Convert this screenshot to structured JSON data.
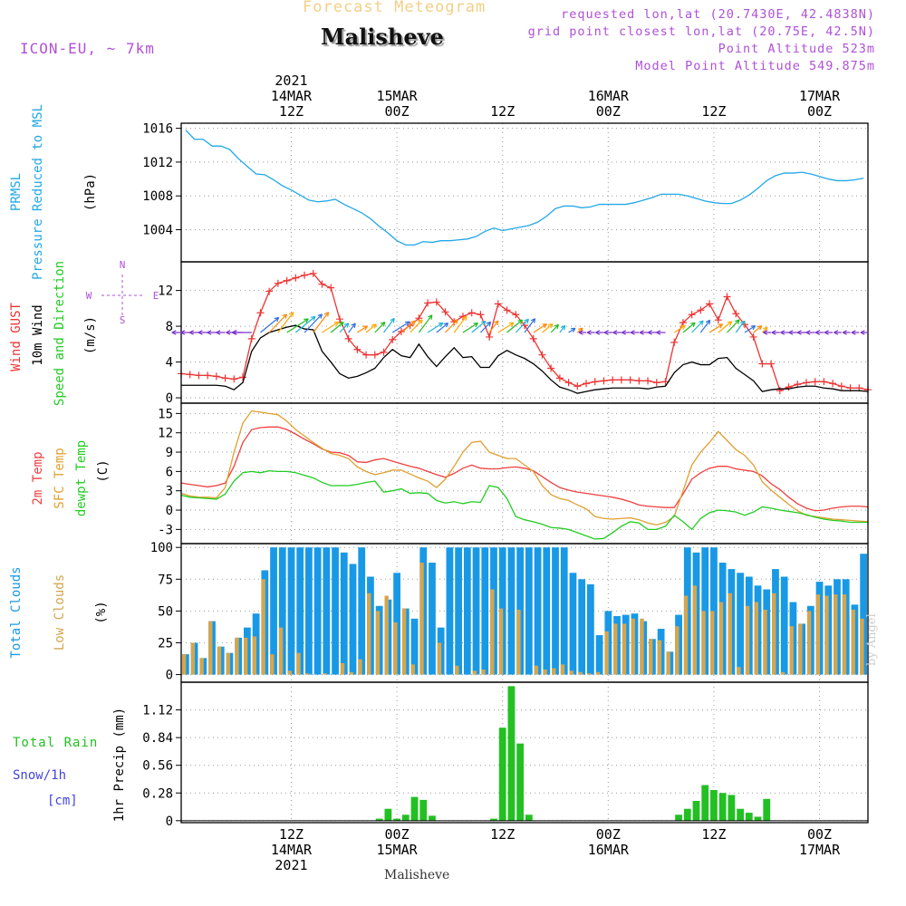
{
  "header": {
    "title": "Forecast Meteogram",
    "location": "Malisheve",
    "model": "ICON-EU, ~ 7km",
    "info": [
      "requested lon,lat (20.7430E, 42.4838N)",
      "grid point closest lon,lat (20.75E, 42.5N)",
      "Point Altitude 523m",
      "Model Point Altitude 549.875m"
    ],
    "footer_location": "Malisheve",
    "watermark": "by Angel"
  },
  "time_axis": {
    "top_labels": [
      {
        "t": 12,
        "lines": [
          "2021",
          "14MAR",
          "12Z"
        ]
      },
      {
        "t": 24,
        "lines": [
          "15MAR",
          "00Z"
        ]
      },
      {
        "t": 36,
        "lines": [
          "12Z"
        ]
      },
      {
        "t": 48,
        "lines": [
          "16MAR",
          "00Z"
        ]
      },
      {
        "t": 60,
        "lines": [
          "12Z"
        ]
      },
      {
        "t": 72,
        "lines": [
          "17MAR",
          "00Z"
        ]
      }
    ],
    "bottom_labels": [
      {
        "t": 12,
        "lines": [
          "12Z",
          "14MAR",
          "2021"
        ]
      },
      {
        "t": 24,
        "lines": [
          "00Z",
          "15MAR"
        ]
      },
      {
        "t": 36,
        "lines": [
          "12Z"
        ]
      },
      {
        "t": 48,
        "lines": [
          "00Z",
          "16MAR"
        ]
      },
      {
        "t": 60,
        "lines": [
          "12Z"
        ]
      },
      {
        "t": 72,
        "lines": [
          "00Z",
          "17MAR"
        ]
      }
    ]
  },
  "colors": {
    "pressure": "#22a7e8",
    "gust": "#ee3333",
    "wind": "#000000",
    "temp2m": "#ee4040",
    "sfc": "#e0a030",
    "dewpt": "#22cc22",
    "total_clouds": "#1899e6",
    "low_clouds": "#d4a64e",
    "rain": "#22c022",
    "snow": "#4444dd",
    "compass": "#b050d8",
    "info": "#b050d8"
  },
  "chart_data": [
    {
      "type": "line",
      "panel": "pressure",
      "ylabels": [
        "PRMSL",
        "Pressure Reduced to MSL",
        "(hPa)"
      ],
      "yticks": [
        1004,
        1008,
        1012,
        1016
      ],
      "ylim": [
        1000.2,
        1016.6
      ],
      "series": [
        {
          "name": "PRMSL",
          "x": [
            0,
            1,
            2,
            3,
            4,
            5,
            6,
            7,
            8,
            9,
            10,
            11,
            12,
            13,
            14,
            15,
            16,
            17,
            18,
            19,
            20,
            21,
            22,
            23,
            24,
            25,
            26,
            27,
            28,
            29,
            30,
            31,
            32,
            33,
            34,
            35,
            36,
            37,
            38,
            39,
            40,
            41,
            42,
            43,
            44,
            45,
            46,
            47,
            48,
            49,
            50,
            51,
            52,
            53,
            54,
            55,
            56,
            57,
            58,
            59,
            60,
            61,
            62,
            63,
            64,
            65,
            66,
            67,
            68,
            69,
            70,
            71,
            72,
            73,
            74,
            75,
            76,
            77
          ],
          "values": [
            1015.8,
            1014.7,
            1014.7,
            1013.9,
            1013.9,
            1013.5,
            1012.4,
            1011.5,
            1010.6,
            1010.5,
            1009.9,
            1009.2,
            1008.7,
            1008.1,
            1007.5,
            1007.3,
            1007.4,
            1007.6,
            1007.0,
            1006.5,
            1006.0,
            1005.3,
            1004.4,
            1003.6,
            1002.7,
            1002.2,
            1002.2,
            1002.6,
            1002.5,
            1002.7,
            1002.7,
            1002.8,
            1002.9,
            1003.2,
            1003.8,
            1004.2,
            1003.9,
            1004.1,
            1004.3,
            1004.5,
            1004.9,
            1005.6,
            1006.5,
            1006.8,
            1006.8,
            1006.6,
            1006.7,
            1007.0,
            1007.0,
            1007.0,
            1007.0,
            1007.2,
            1007.5,
            1007.8,
            1008.2,
            1008.2,
            1008.2,
            1008.0,
            1007.7,
            1007.4,
            1007.2,
            1007.1,
            1007.1,
            1007.5,
            1008.1,
            1008.9,
            1009.8,
            1010.4,
            1010.7,
            1010.7,
            1010.8,
            1010.6,
            1010.3,
            1010.0,
            1009.8,
            1009.8,
            1009.9,
            1010.1
          ]
        }
      ]
    },
    {
      "type": "line",
      "panel": "wind",
      "ylabels": [
        "Wind GUST",
        "10m Wind",
        "Speed and Direction",
        "(m/s)"
      ],
      "compass": [
        "N",
        "W",
        "E",
        "S"
      ],
      "yticks": [
        0,
        4,
        8,
        12
      ],
      "ylim": [
        -0.6,
        15.2
      ],
      "series": [
        {
          "name": "Wind GUST",
          "values": [
            2.7,
            2.6,
            2.5,
            2.5,
            2.4,
            2.2,
            2.1,
            2.3,
            6.6,
            9.5,
            11.9,
            12.8,
            13.1,
            13.4,
            13.7,
            13.9,
            12.7,
            12.3,
            8.8,
            6.6,
            5.4,
            4.8,
            4.8,
            5.1,
            6.5,
            7.4,
            8.1,
            8.9,
            10.6,
            10.7,
            9.6,
            8.5,
            9.1,
            9.5,
            9.3,
            6.8,
            10.5,
            9.8,
            9.3,
            8.1,
            6.6,
            4.8,
            3.3,
            2.2,
            1.7,
            1.3,
            1.6,
            1.8,
            1.9,
            2.0,
            2.0,
            2.0,
            1.9,
            1.9,
            1.7,
            1.8,
            6.2,
            8.4,
            9.3,
            9.8,
            10.5,
            8.7,
            11.3,
            9.4,
            8.2,
            6.8,
            3.8,
            3.8,
            0.8,
            1.2,
            1.5,
            1.7,
            1.8,
            1.8,
            1.6,
            1.3,
            1.1,
            1.1,
            0.9
          ]
        },
        {
          "name": "10m Wind",
          "values": [
            1.4,
            1.4,
            1.4,
            1.4,
            1.4,
            1.3,
            0.9,
            1.7,
            5.2,
            6.7,
            7.3,
            7.6,
            7.9,
            8.1,
            7.7,
            7.6,
            5.2,
            4.0,
            2.7,
            2.2,
            2.4,
            2.8,
            3.3,
            4.5,
            5.4,
            4.7,
            4.5,
            6.0,
            4.6,
            3.5,
            4.6,
            5.6,
            4.5,
            4.6,
            3.4,
            3.4,
            4.7,
            5.3,
            4.8,
            4.4,
            3.8,
            3.0,
            2.0,
            1.2,
            0.9,
            0.5,
            0.7,
            0.9,
            1.0,
            1.1,
            1.1,
            1.1,
            1.1,
            1.0,
            1.2,
            1.3,
            2.8,
            3.7,
            4.0,
            3.7,
            3.7,
            4.4,
            4.5,
            3.3,
            2.6,
            1.9,
            0.7,
            0.9,
            1.0,
            1.0,
            1.2,
            1.3,
            1.3,
            1.1,
            1.0,
            0.8,
            0.8,
            0.8,
            0.7
          ]
        }
      ]
    },
    {
      "type": "line",
      "panel": "temperature",
      "ylabels": [
        "2m Temp",
        "SFC Temp",
        "dewpt Temp",
        "(C)"
      ],
      "yticks": [
        -3,
        0,
        3,
        6,
        9,
        12,
        15
      ],
      "ylim": [
        -5.2,
        16.6
      ],
      "series": [
        {
          "name": "2m Temp",
          "values": [
            4.2,
            4.0,
            3.8,
            3.6,
            3.8,
            4.2,
            6.8,
            10.5,
            12.5,
            12.8,
            12.9,
            12.9,
            12.5,
            11.8,
            11.0,
            10.3,
            9.5,
            9.0,
            8.9,
            8.5,
            7.5,
            7.4,
            7.8,
            8.0,
            7.6,
            7.2,
            6.8,
            6.5,
            6.0,
            5.5,
            5.1,
            5.7,
            6.5,
            7.0,
            6.5,
            6.4,
            6.4,
            6.6,
            6.7,
            6.5,
            6.1,
            5.2,
            4.3,
            3.5,
            3.1,
            2.8,
            2.6,
            2.4,
            2.2,
            2.0,
            1.7,
            1.3,
            0.8,
            0.6,
            0.5,
            0.4,
            0.4,
            2.5,
            4.8,
            5.8,
            6.5,
            6.8,
            6.8,
            6.4,
            6.2,
            6.0,
            5.3,
            4.1,
            3.2,
            2.0,
            1.0,
            0.3,
            -0.1,
            0.0,
            0.3,
            0.5,
            0.6,
            0.6,
            0.5
          ]
        },
        {
          "name": "SFC Temp",
          "values": [
            2.6,
            2.2,
            2.0,
            2.0,
            1.9,
            3.5,
            9.0,
            13.5,
            15.4,
            15.2,
            15.0,
            14.8,
            13.8,
            12.5,
            11.5,
            10.5,
            9.6,
            8.8,
            8.5,
            8.0,
            6.7,
            6.0,
            5.5,
            5.8,
            6.2,
            6.2,
            5.6,
            5.0,
            4.5,
            3.5,
            4.8,
            6.8,
            9.0,
            10.5,
            10.7,
            9.0,
            8.5,
            8.0,
            8.0,
            7.0,
            6.0,
            3.8,
            2.4,
            1.8,
            1.5,
            0.8,
            0.2,
            -1.0,
            -1.3,
            -1.4,
            -1.3,
            -1.2,
            -1.5,
            -2.0,
            -2.3,
            -1.9,
            -1.0,
            3.0,
            7.0,
            9.0,
            10.5,
            12.2,
            10.8,
            9.4,
            8.5,
            7.0,
            4.4,
            3.1,
            2.0,
            0.9,
            -0.1,
            -0.8,
            -1.0,
            -1.2,
            -1.4,
            -1.5,
            -1.6,
            -1.7,
            -1.8
          ]
        },
        {
          "name": "dewpt Temp",
          "values": [
            2.3,
            2.0,
            1.9,
            1.8,
            1.7,
            2.5,
            4.5,
            5.8,
            6.0,
            5.8,
            6.1,
            6.0,
            6.0,
            5.8,
            5.4,
            5.0,
            4.3,
            3.8,
            3.8,
            3.8,
            4.0,
            4.3,
            4.5,
            2.8,
            3.0,
            3.3,
            2.6,
            2.7,
            2.6,
            1.5,
            1.1,
            1.3,
            1.0,
            1.3,
            1.2,
            3.8,
            3.5,
            1.8,
            -1.0,
            -1.5,
            -1.8,
            -2.2,
            -2.7,
            -2.8,
            -3.0,
            -3.5,
            -4.0,
            -4.5,
            -4.4,
            -3.5,
            -2.5,
            -1.8,
            -2.0,
            -3.0,
            -3.0,
            -2.5,
            -0.8,
            -1.8,
            -3.0,
            -1.3,
            -0.4,
            0.0,
            -0.1,
            -0.3,
            -0.8,
            -0.3,
            0.5,
            0.3,
            0.0,
            -0.2,
            -0.4,
            -0.7,
            -1.1,
            -1.4,
            -1.6,
            -1.7,
            -1.9,
            -1.9,
            -1.9
          ]
        }
      ]
    },
    {
      "type": "bar",
      "panel": "clouds",
      "ylabels": [
        "Total Clouds",
        "Low Clouds",
        "(%)"
      ],
      "yticks": [
        0,
        25,
        50,
        75,
        100
      ],
      "ylim": [
        -6,
        103
      ],
      "series": [
        {
          "name": "Total Clouds",
          "values": [
            16,
            25,
            13,
            42,
            22,
            17,
            29,
            37,
            48,
            82,
            100,
            100,
            100,
            100,
            100,
            100,
            100,
            100,
            96,
            87,
            100,
            77,
            54,
            59,
            80,
            52,
            44,
            100,
            88,
            37,
            100,
            100,
            100,
            100,
            100,
            100,
            100,
            100,
            100,
            100,
            100,
            100,
            100,
            100,
            80,
            75,
            71,
            31,
            50,
            46,
            47,
            48,
            42,
            28,
            36,
            18,
            47,
            100,
            96,
            100,
            100,
            88,
            83,
            80,
            77,
            70,
            67,
            83,
            77,
            57,
            40,
            54,
            73,
            70,
            75,
            75,
            55,
            95
          ]
        },
        {
          "name": "Low Clouds",
          "values": [
            16,
            25,
            13,
            42,
            22,
            17,
            29,
            29,
            30,
            75,
            16,
            37,
            3,
            17,
            1,
            0,
            1,
            0,
            9,
            2,
            12,
            64,
            50,
            62,
            41,
            52,
            8,
            88,
            0,
            25,
            0,
            7,
            0,
            3,
            4,
            67,
            52,
            0,
            51,
            0,
            7,
            4,
            5,
            8,
            3,
            2,
            1,
            2,
            34,
            40,
            40,
            44,
            44,
            28,
            27,
            18,
            38,
            62,
            70,
            50,
            50,
            57,
            64,
            6,
            54,
            57,
            51,
            64,
            2,
            38,
            40,
            50,
            63,
            62,
            63,
            63,
            51,
            44
          ]
        }
      ]
    },
    {
      "type": "bar",
      "panel": "precip",
      "ylabels": [
        "1hr Precip (mm)",
        "Total Rain",
        "Snow/1h",
        "[cm]"
      ],
      "yticks": [
        "0",
        "0.28",
        "0.56",
        "0.84",
        "1.12"
      ],
      "ylim": [
        -0.02,
        1.4
      ],
      "series": [
        {
          "name": "Total Rain",
          "values": [
            0,
            0,
            0,
            0,
            0,
            0,
            0,
            0,
            0,
            0,
            0,
            0,
            0,
            0,
            0,
            0,
            0,
            0,
            0,
            0,
            0,
            0,
            0.02,
            0.12,
            0.02,
            0.06,
            0.24,
            0.21,
            0.05,
            0,
            0,
            0,
            0,
            0,
            0,
            0.02,
            0.94,
            1.36,
            0.78,
            0.06,
            0,
            0,
            0,
            0,
            0,
            0,
            0,
            0,
            0,
            0,
            0,
            0,
            0,
            0,
            0,
            0,
            0.06,
            0.12,
            0.2,
            0.36,
            0.31,
            0.28,
            0.26,
            0.12,
            0.08,
            0.04,
            0.22,
            0,
            0,
            0,
            0,
            0,
            0,
            0,
            0,
            0,
            0,
            0
          ]
        }
      ]
    }
  ]
}
